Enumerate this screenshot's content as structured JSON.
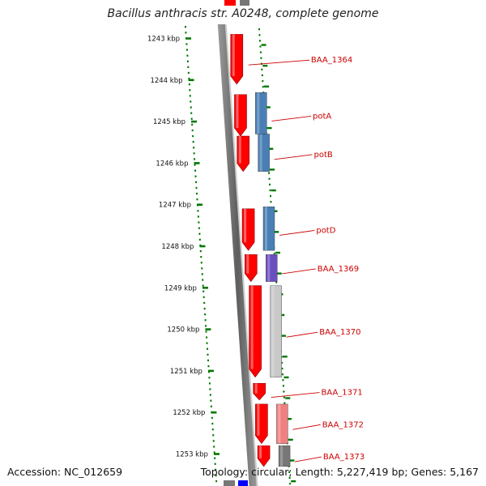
{
  "title": "Bacillus anthracis str. A0248, complete genome",
  "accession_text": "Accession: NC_012659",
  "topology_text": "Topology: circular; Length: 5,227,419 bp; Genes: 5,167",
  "ruler": {
    "unit": "kbp",
    "labels": [
      "1243 kbp",
      "1244 kbp",
      "1245 kbp",
      "1246 kbp",
      "1247 kbp",
      "1248 kbp",
      "1249 kbp",
      "1250 kbp",
      "1251 kbp",
      "1252 kbp",
      "1253 kbp"
    ]
  },
  "colors": {
    "forward": "#ff0000",
    "ruler": "#007700",
    "label": "#cc0000",
    "potA": "#4a7fb5",
    "potB": "#4a7fb5",
    "potD": "#4a7fb5",
    "BAA_1369": "#6a4fc0",
    "BAA_1370": "#c8c8c8",
    "BAA_1372": "#f08080",
    "BAA_1373": "#777777"
  },
  "genes": [
    {
      "name": "BAA_1364",
      "start_kbp": 1242.9,
      "end_kbp": 1244.1
    },
    {
      "name": "potA",
      "start_kbp": 1244.35,
      "end_kbp": 1245.35,
      "partner_start_kbp": 1244.3,
      "partner_end_kbp": 1245.3
    },
    {
      "name": "potB",
      "start_kbp": 1245.35,
      "end_kbp": 1246.2,
      "partner_start_kbp": 1245.3,
      "partner_end_kbp": 1246.2
    },
    {
      "name": "potD",
      "start_kbp": 1247.1,
      "end_kbp": 1248.1,
      "partner_start_kbp": 1247.05,
      "partner_end_kbp": 1248.1
    },
    {
      "name": "BAA_1369",
      "start_kbp": 1248.2,
      "end_kbp": 1248.85,
      "partner_start_kbp": 1248.2,
      "partner_end_kbp": 1248.85
    },
    {
      "name": "BAA_1370",
      "start_kbp": 1248.95,
      "end_kbp": 1251.15,
      "partner_start_kbp": 1248.95,
      "partner_end_kbp": 1251.15
    },
    {
      "name": "BAA_1371",
      "start_kbp": 1251.3,
      "end_kbp": 1251.7
    },
    {
      "name": "BAA_1372",
      "start_kbp": 1251.8,
      "end_kbp": 1252.75,
      "partner_start_kbp": 1251.8,
      "partner_end_kbp": 1252.75
    },
    {
      "name": "BAA_1373",
      "start_kbp": 1252.8,
      "end_kbp": 1253.3,
      "partner_start_kbp": 1252.8,
      "partner_end_kbp": 1253.3
    }
  ]
}
